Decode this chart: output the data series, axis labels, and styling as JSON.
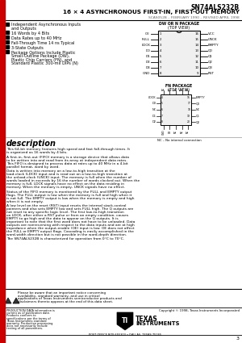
{
  "title_part": "SN74ALS232B",
  "title_desc": "16 × 4 ASYNCHRONOUS FIRST-IN, FIRST-OUT MEMORY",
  "subtitle_date": "SCAS052B – FEBRUARY 1990 – REVISED APRIL 1998",
  "features": [
    "Independent Asynchronous Inputs and Outputs",
    "16 Words by 4 Bits",
    "Data Rates up to 40 MHz",
    "Fall-Through Time 14 ns Typical",
    "3-State Outputs",
    "Package Options Include Plastic Small-Outline Package (DW), Plastic Chip Carriers (FN), and Standard Plastic 300-mil DIPs (N)"
  ],
  "dw_package_label": "DW OR N PACKAGE",
  "dw_package_sub": "(TOP VIEW)",
  "dw_left_pins": [
    "OE",
    "FULL",
    "LDCK",
    "D0",
    "D1",
    "D2",
    "D3",
    "GND"
  ],
  "dw_right_pins": [
    "VCC",
    "UNCK",
    "EMPTY",
    "Q0",
    "Q1",
    "Q2",
    "Q3",
    "RST"
  ],
  "dw_left_nums": [
    "1",
    "2",
    "3",
    "4",
    "5",
    "6",
    "7",
    "8"
  ],
  "dw_right_nums": [
    "16",
    "15",
    "14",
    "13",
    "12",
    "11",
    "10",
    "9"
  ],
  "fn_package_label": "FN PACKAGE",
  "fn_package_sub": "(TOP VIEW)",
  "fn_left_pins": [
    "LDCK",
    "D0",
    "NC",
    "D1",
    "D2"
  ],
  "fn_right_pins": [
    "EMPTY",
    "Q0",
    "NC",
    "Q1",
    "Q2"
  ],
  "fn_left_nums": [
    "4",
    "5",
    "6",
    "7",
    "8"
  ],
  "fn_right_nums": [
    "16",
    "17",
    "18",
    "19",
    "20"
  ],
  "fn_top_pins": [
    "NC",
    "NC",
    "NC",
    "NC",
    "OE"
  ],
  "fn_bot_pins": [
    "GND",
    "D3",
    "NC",
    "NC",
    "NC"
  ],
  "description_title": "description",
  "desc_para1": "This 64-bit memory features high speed and fast fall-through times. It is organized as 16 words by 4 bits.",
  "desc_para2": "A first-in, first-out (FIFO) memory is a storage device that allows data to be written into and read from its array at independent data rates. This FIFO is designed to process data at rates up to 40 MHz in a 4-bit parallel format, word by word.",
  "desc_para3": "Data is written into memory on a low-to-high transition at the load-clock (LDCK) input and is read out on a low-to-high transition at the unload-clock (UNCK) input. The memory is full when the number of words loaded in exceeds by 16 the number of words clocked out. When the memory is full, LDCK signals have no effect on the data residing in memory. When the memory is empty, UNCK signals have no effect.",
  "desc_para4": "Status of the FIFO memory is monitored by the FULL and EMPTY output flags. The FULL output is low when the memory is full and high when it is not full. The EMPTY output is low when the memory is empty and high when it is not empty.",
  "desc_para5": "A low level on the reset (RST) input resets the internal stack-control pointers and also sets EMPTY low and sets FULL high. The Q outputs are not reset to any specific logic level. The first low-to-high transition on LDCK, after either a RST pulse or from an empty condition, causes EMPTY to go high and the data to appear on the Q outputs. It is important to note that the first word does not have to be unloaded. Data outputs are nonreversing with respect to the data inputs and are at high impedance when the output-enable (OE) input is low. OE does not affect the FULL or EMPTY output flags. Cascading is easily accomplished in the word-width direction but is not possible in the word-depth direction.",
  "desc_para6": "The SN74ALS232B is characterized for operation from 0°C to 70°C.",
  "warning_text": "Please be aware that an important notice concerning availability, standard warranty, and use in critical applications of Texas Instruments semiconductor products and disclaimers thereto appears at the end of this data sheet.",
  "footer_left": "PRODUCTION DATA information is current as of publication date. Products conform to specifications per the terms of Texas Instruments standard warranty. Production processing does not necessarily include testing of all parameters.",
  "footer_addr": "POST OFFICE BOX 655303 • DALLAS, TEXAS 75265",
  "copyright_text": "Copyright © 1998, Texas Instruments Incorporated",
  "page_num": "3",
  "nc_note": "NC – No internal connection",
  "bg_color": "#ffffff",
  "text_color": "#000000",
  "red_color": "#cc0000"
}
